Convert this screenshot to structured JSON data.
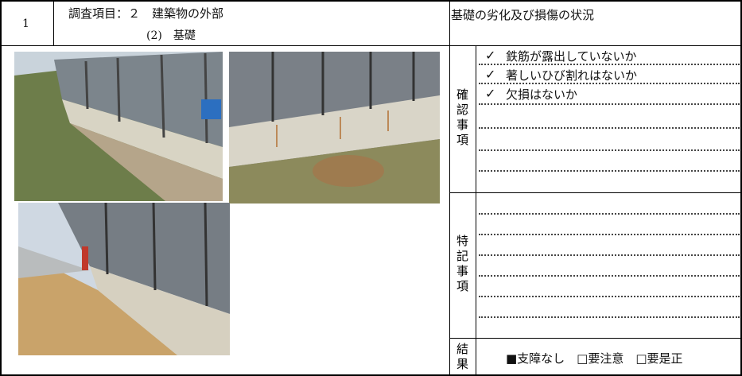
{
  "header": {
    "number": "1",
    "item": "調査項目：２　建築物の外部",
    "sub_item": "(2)　基礎",
    "subject": "基礎の劣化及び損傷の状況"
  },
  "check": {
    "label": "確認事項",
    "items": [
      {
        "mark": "✓",
        "text": "鉄筋が露出していないか"
      },
      {
        "mark": "✓",
        "text": "著しいひび割れはないか"
      },
      {
        "mark": "✓",
        "text": "欠損はないか"
      }
    ]
  },
  "notes": {
    "label": "特記事項"
  },
  "result": {
    "label": "結果",
    "text": "■支障なし　□要注意　□要是正"
  }
}
